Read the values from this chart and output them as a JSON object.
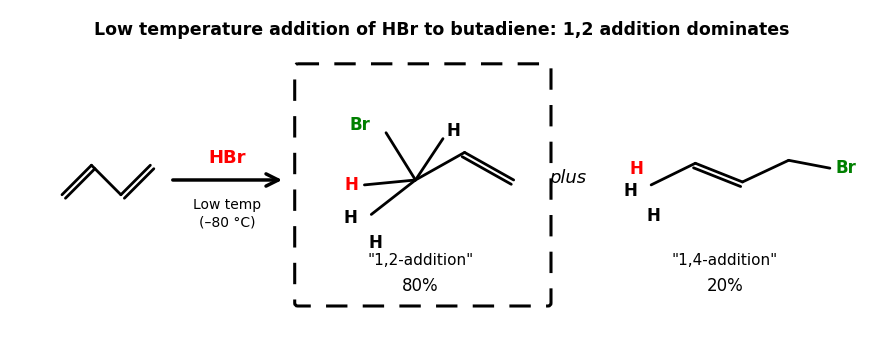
{
  "title": "Low temperature addition of HBr to butadiene: 1,2 addition dominates",
  "title_fontsize": 12.5,
  "background_color": "#ffffff",
  "arrow_color": "#000000",
  "hbr_color": "#ff0000",
  "br_color": "#008000",
  "h_red_color": "#ff0000",
  "black_color": "#000000",
  "italic_plus": "plus",
  "label_12": "\"1,2-addition\"",
  "label_14": "\"1,4-addition\"",
  "pct_12": "80%",
  "pct_14": "20%",
  "low_temp_line1": "Low temp",
  "low_temp_line2": "(–80 °C)"
}
